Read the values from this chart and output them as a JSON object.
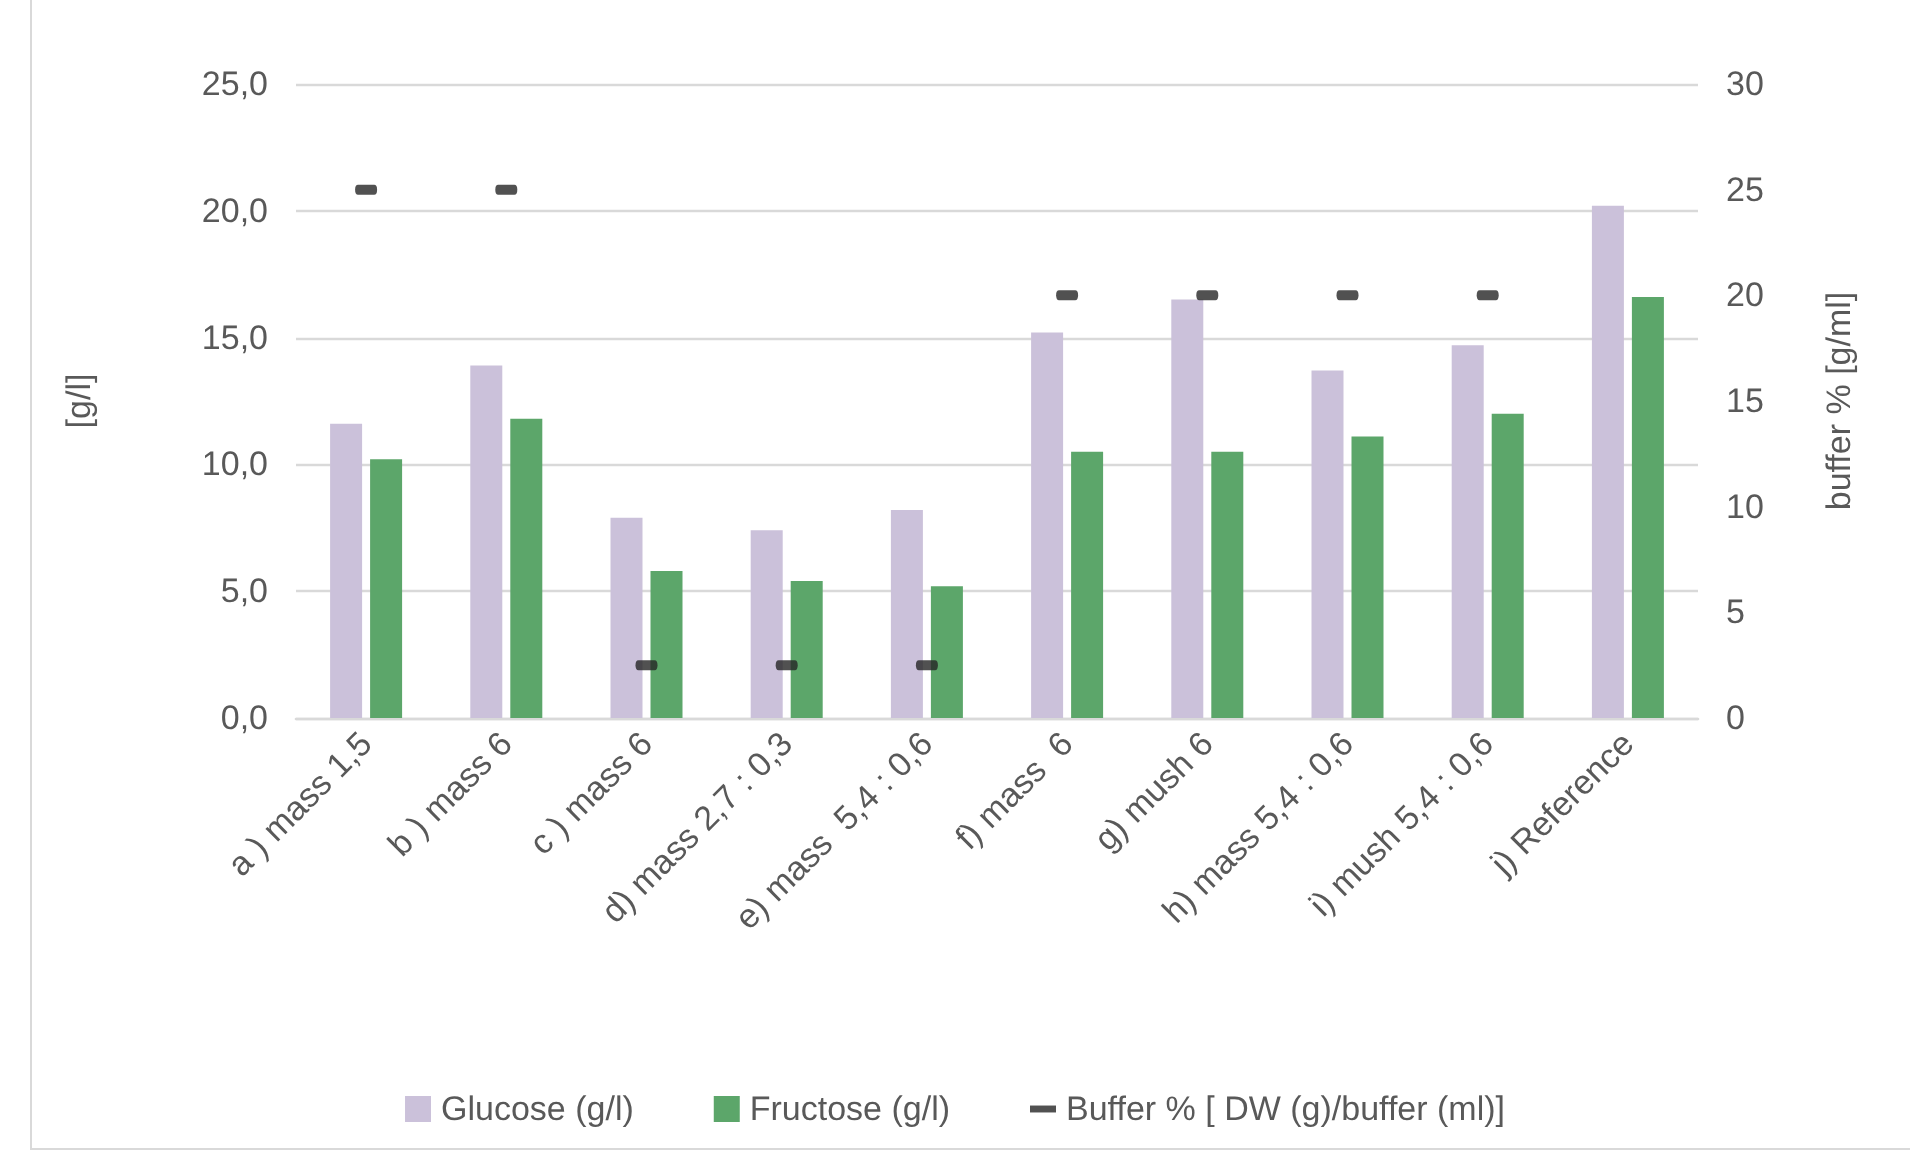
{
  "chart_data": {
    "type": "bar",
    "categories": [
      "a ) mass 1,5",
      "b ) mass 6",
      "c ) mass 6",
      "d) mass 2,7 : 0,3",
      "e) mass  5,4 : 0,6",
      "f) mass  6",
      "g) mush 6",
      "h) mass 5,4 : 0,6",
      "i) mush 5,4 : 0,6",
      "j) Reference"
    ],
    "series": [
      {
        "name": "Glucose (g/l)",
        "color": "#cbc1da",
        "values": [
          11.6,
          13.9,
          7.9,
          7.4,
          8.2,
          15.2,
          16.5,
          13.7,
          14.7,
          20.2
        ]
      },
      {
        "name": "Fructose (g/l)",
        "color": "#5ca66a",
        "values": [
          10.2,
          11.8,
          5.8,
          5.4,
          5.2,
          10.5,
          10.5,
          11.1,
          12.0,
          16.6
        ]
      },
      {
        "name": "Buffer % [ DW (g)/buffer (ml)]",
        "type": "scatter",
        "axis": "y2",
        "color": "#262626",
        "values": [
          25,
          25,
          2.5,
          2.5,
          2.5,
          20,
          20,
          20,
          20,
          null
        ]
      }
    ],
    "ylabel": "[g/l]",
    "y2label": "buffer % [g/ml]",
    "ylim": [
      0,
      25
    ],
    "yticks": [
      {
        "value": 0,
        "label": "0,0"
      },
      {
        "value": 5,
        "label": "5,0"
      },
      {
        "value": 10,
        "label": "10,0"
      },
      {
        "value": 15,
        "label": "15,0"
      },
      {
        "value": 20,
        "label": "20,0"
      },
      {
        "value": 25,
        "label": "25,0"
      }
    ],
    "y2lim": [
      0,
      30
    ],
    "y2ticks": [
      0,
      5,
      10,
      15,
      20,
      25,
      30
    ],
    "grid": "y",
    "legend": "bottom"
  }
}
